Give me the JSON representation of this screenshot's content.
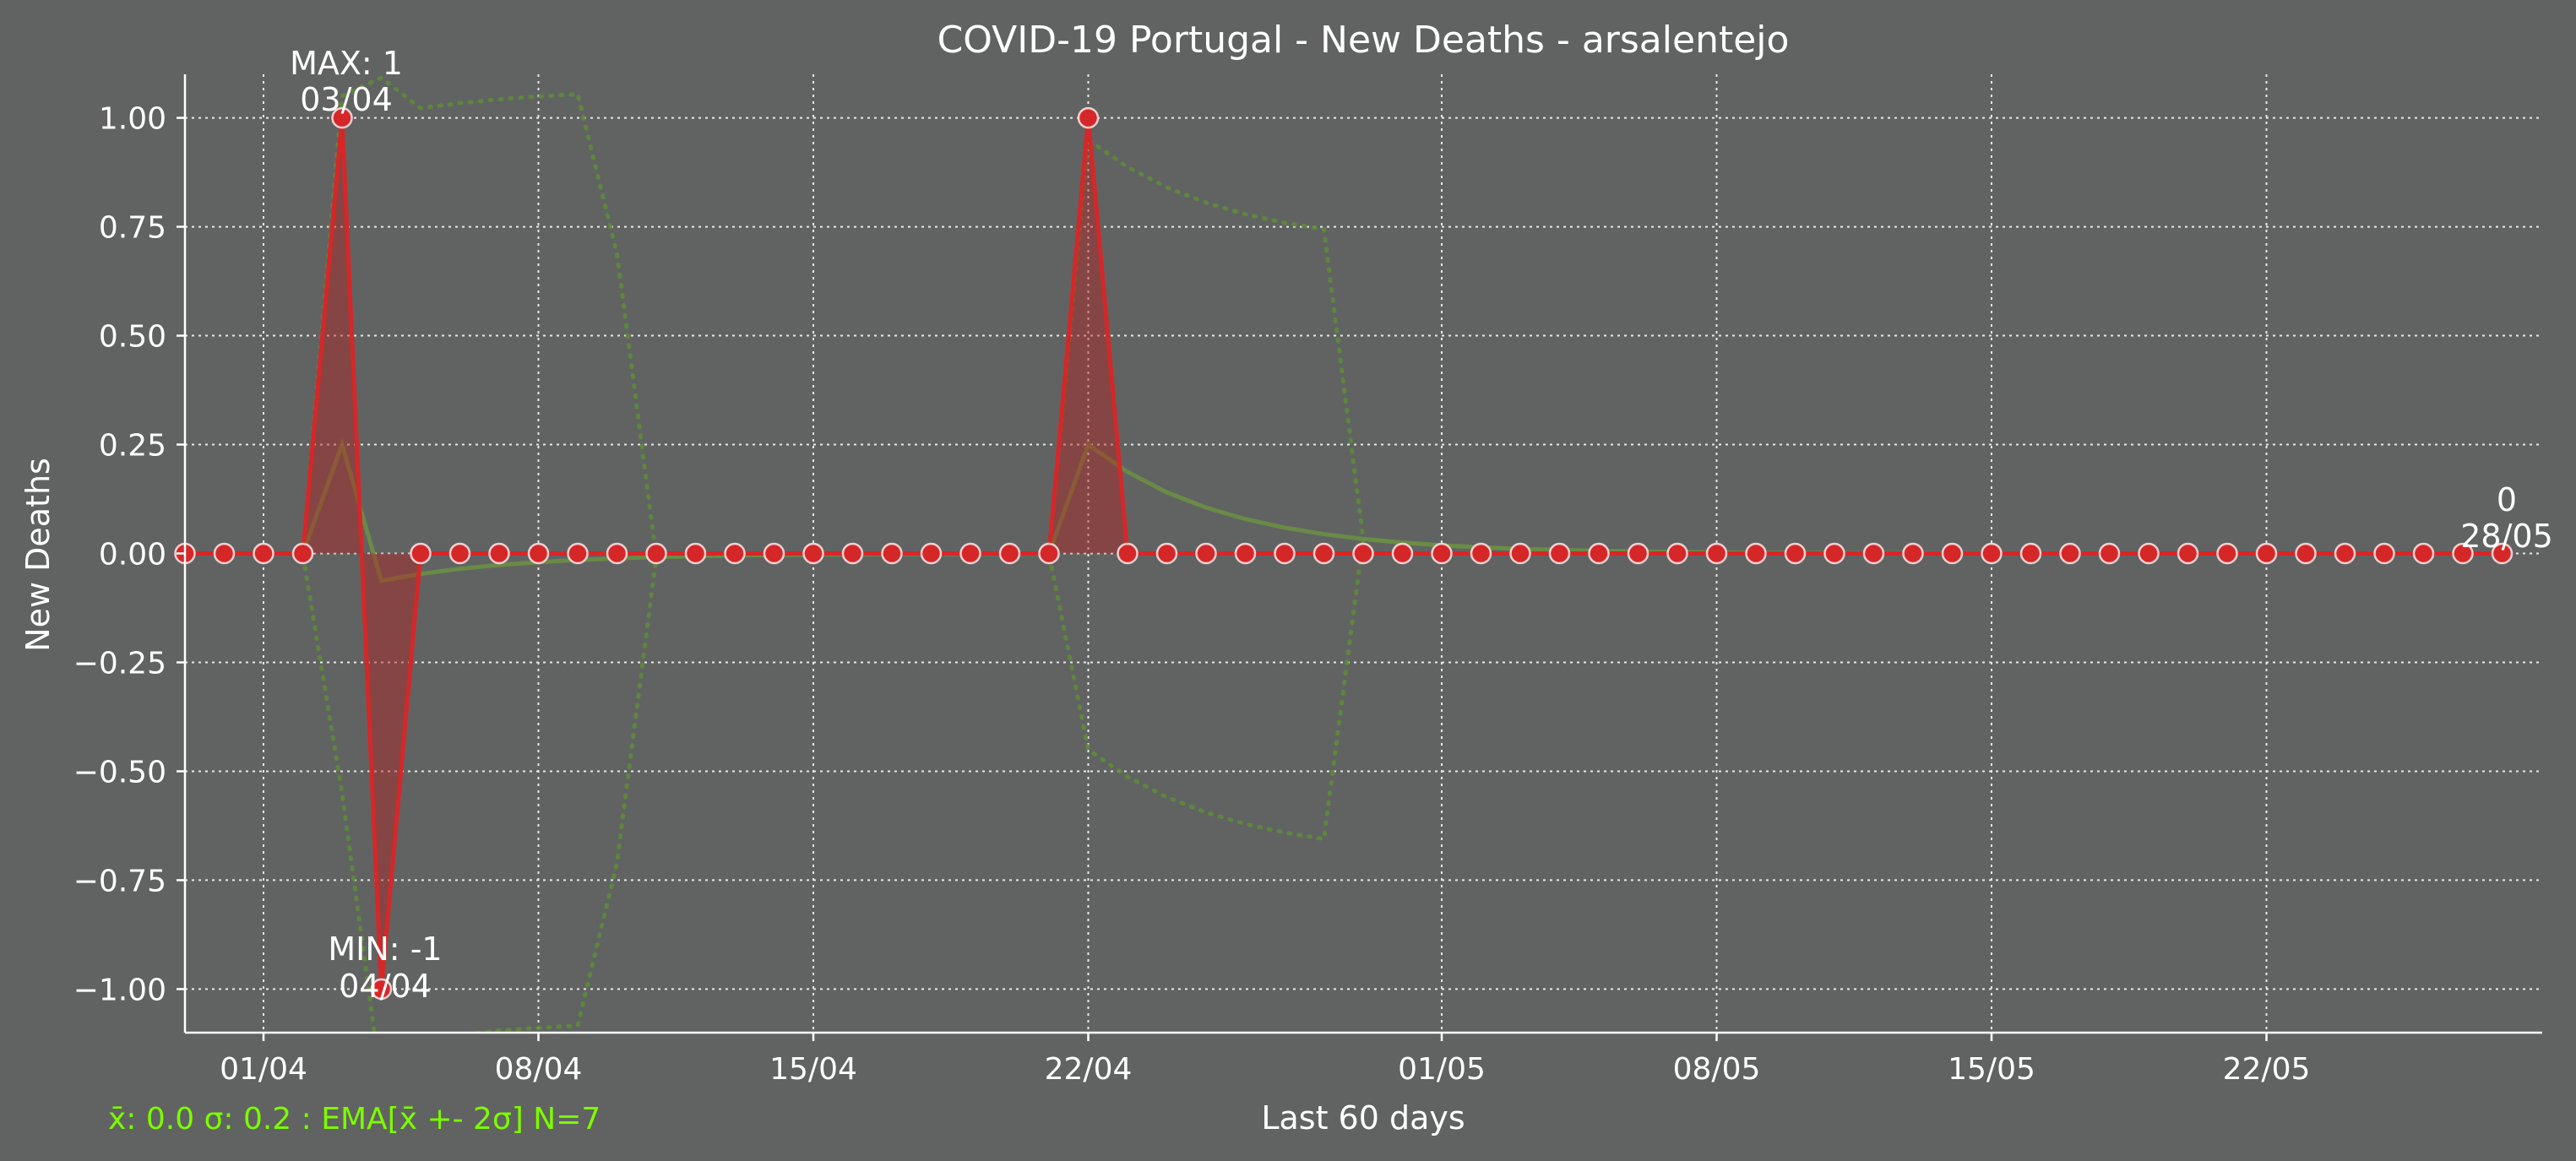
{
  "colors": {
    "background": "#616362",
    "line": "#d62728",
    "fill": "#b22222",
    "marker_fill": "#d62728",
    "marker_edge": "#f0d0d0",
    "ema": "#6b8e45",
    "band": "#5e8c3a",
    "stats_text": "#7cfc00",
    "grid": "#e8e8e8",
    "text": "#ffffff"
  },
  "chart_data": {
    "type": "line",
    "title": "COVID-19 Portugal - New Deaths - arsalentejo",
    "xlabel": "Last 60 days",
    "ylabel": "New Deaths",
    "x_dates": [
      "30/03",
      "31/03",
      "01/04",
      "02/04",
      "03/04",
      "04/04",
      "05/04",
      "06/04",
      "07/04",
      "08/04",
      "09/04",
      "10/04",
      "11/04",
      "12/04",
      "13/04",
      "14/04",
      "15/04",
      "16/04",
      "17/04",
      "18/04",
      "19/04",
      "20/04",
      "21/04",
      "22/04",
      "23/04",
      "24/04",
      "25/04",
      "26/04",
      "27/04",
      "28/04",
      "29/04",
      "30/04",
      "01/05",
      "02/05",
      "03/05",
      "04/05",
      "05/05",
      "06/05",
      "07/05",
      "08/05",
      "09/05",
      "10/05",
      "11/05",
      "12/05",
      "13/05",
      "14/05",
      "15/05",
      "16/05",
      "17/05",
      "18/05",
      "19/05",
      "20/05",
      "21/05",
      "22/05",
      "23/05",
      "24/05",
      "25/05",
      "26/05",
      "27/05",
      "28/05"
    ],
    "values": [
      0,
      0,
      0,
      0,
      1,
      -1,
      0,
      0,
      0,
      0,
      0,
      0,
      0,
      0,
      0,
      0,
      0,
      0,
      0,
      0,
      0,
      0,
      0,
      1,
      0,
      0,
      0,
      0,
      0,
      0,
      0,
      0,
      0,
      0,
      0,
      0,
      0,
      0,
      0,
      0,
      0,
      0,
      0,
      0,
      0,
      0,
      0,
      0,
      0,
      0,
      0,
      0,
      0,
      0,
      0,
      0,
      0,
      0,
      0,
      0
    ],
    "ylim": [
      -1.1,
      1.1
    ],
    "y_ticks": [
      "1.00",
      "0.75",
      "0.50",
      "0.25",
      "0.00",
      "−0.25",
      "−0.50",
      "−0.75",
      "−1.00"
    ],
    "x_ticks": [
      "01/04",
      "08/04",
      "15/04",
      "22/04",
      "01/05",
      "08/05",
      "15/05",
      "22/05"
    ],
    "grid": true,
    "ema_window": 7,
    "annotations": {
      "max": {
        "label": "MAX: 1",
        "date": "03/04"
      },
      "min": {
        "label": "MIN: -1",
        "date": "04/04"
      },
      "last": {
        "label": "0",
        "date": "28/05"
      }
    },
    "stats_text": "x̄: 0.0 σ: 0.2 : EMA[x̄ +- 2σ] N=7"
  }
}
